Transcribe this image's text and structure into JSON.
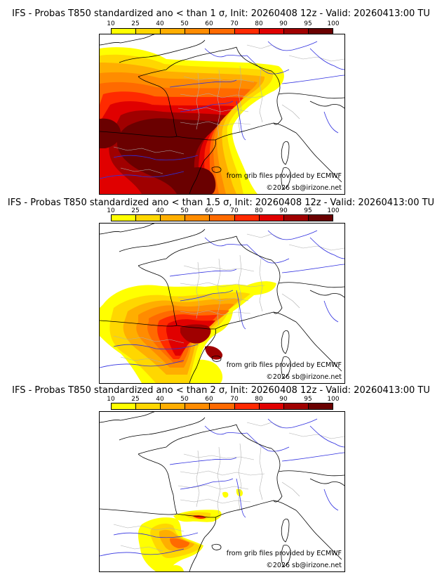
{
  "colorbar": {
    "ticks": [
      "10",
      "25",
      "40",
      "50",
      "60",
      "70",
      "80",
      "90",
      "95",
      "100"
    ],
    "colors": [
      "#ffff00",
      "#ffd700",
      "#ffae00",
      "#ff8c00",
      "#ff6a00",
      "#ff2a00",
      "#e00000",
      "#a00000",
      "#6a0000"
    ]
  },
  "panels": [
    {
      "title": "IFS - Probas T850  standardized ano < than 1 σ, Init: 20260408 12z - Valid: 20260413:00 TU",
      "threshold": "1 σ",
      "source_credit": "from grib files provided by ECMWF",
      "copyright": "©2026 sb@irizone.net"
    },
    {
      "title": "IFS - Probas T850  standardized ano < than 1.5 σ, Init: 20260408 12z - Valid: 20260413:00 TU",
      "threshold": "1.5 σ",
      "source_credit": "from grib files provided by ECMWF",
      "copyright": "©2026 sb@irizone.net"
    },
    {
      "title": "IFS - Probas T850  standardized ano < than 2 σ, Init: 20260408 12z - Valid: 20260413:00 TU",
      "threshold": "2 σ",
      "source_credit": "from grib files provided by ECMWF",
      "copyright": "©2026 sb@irizone.net"
    }
  ]
}
